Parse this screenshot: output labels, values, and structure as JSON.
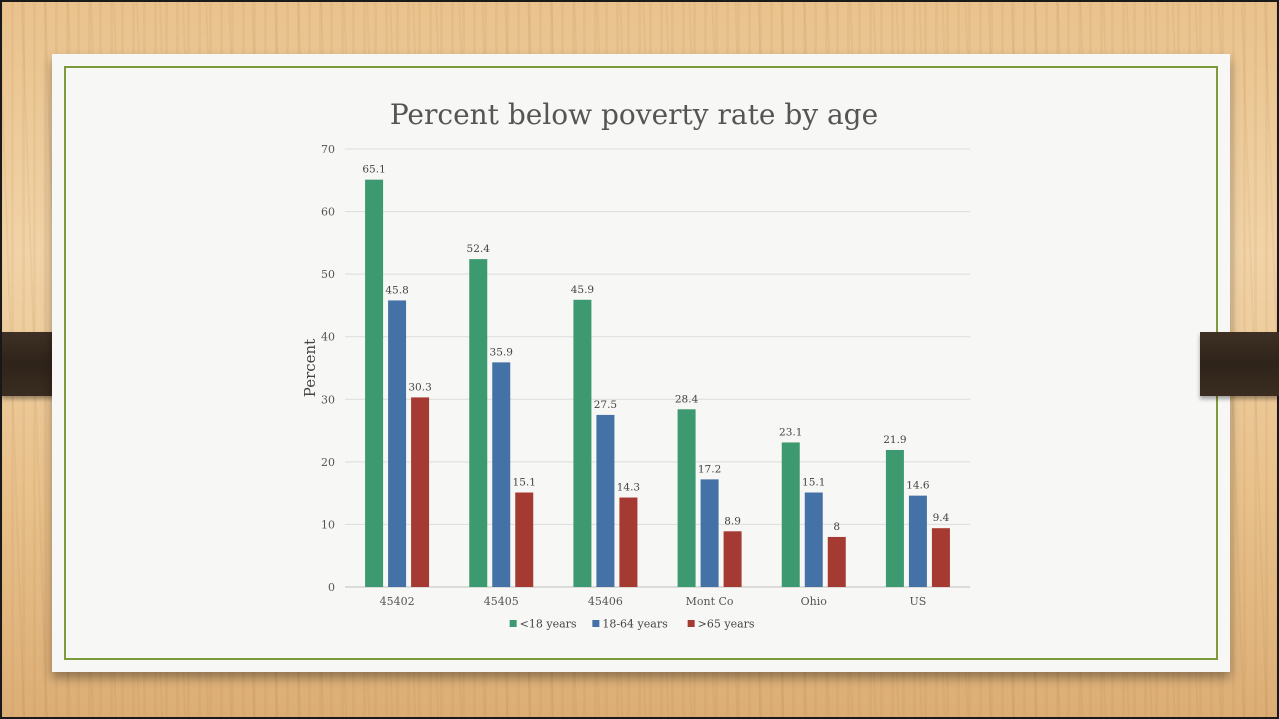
{
  "chart_data": {
    "type": "bar",
    "title": "Percent below poverty rate by age",
    "ylabel": "Percent",
    "xlabel": "",
    "ylim": [
      0,
      70
    ],
    "yticks": [
      0,
      10,
      20,
      30,
      40,
      50,
      60,
      70
    ],
    "grid": true,
    "legend_position": "bottom",
    "categories": [
      "45402",
      "45405",
      "45406",
      "Mont Co",
      "Ohio",
      "US"
    ],
    "series": [
      {
        "name": "<18 years",
        "color": "#3d9970",
        "values": [
          65.1,
          52.4,
          45.9,
          28.4,
          23.1,
          21.9
        ]
      },
      {
        "name": "18-64 years",
        "color": "#4472a6",
        "values": [
          45.8,
          35.9,
          27.5,
          17.2,
          15.1,
          14.6
        ]
      },
      {
        "name": ">65 years",
        "color": "#a53a32",
        "values": [
          30.3,
          15.1,
          14.3,
          8.9,
          8,
          9.4
        ]
      }
    ]
  }
}
